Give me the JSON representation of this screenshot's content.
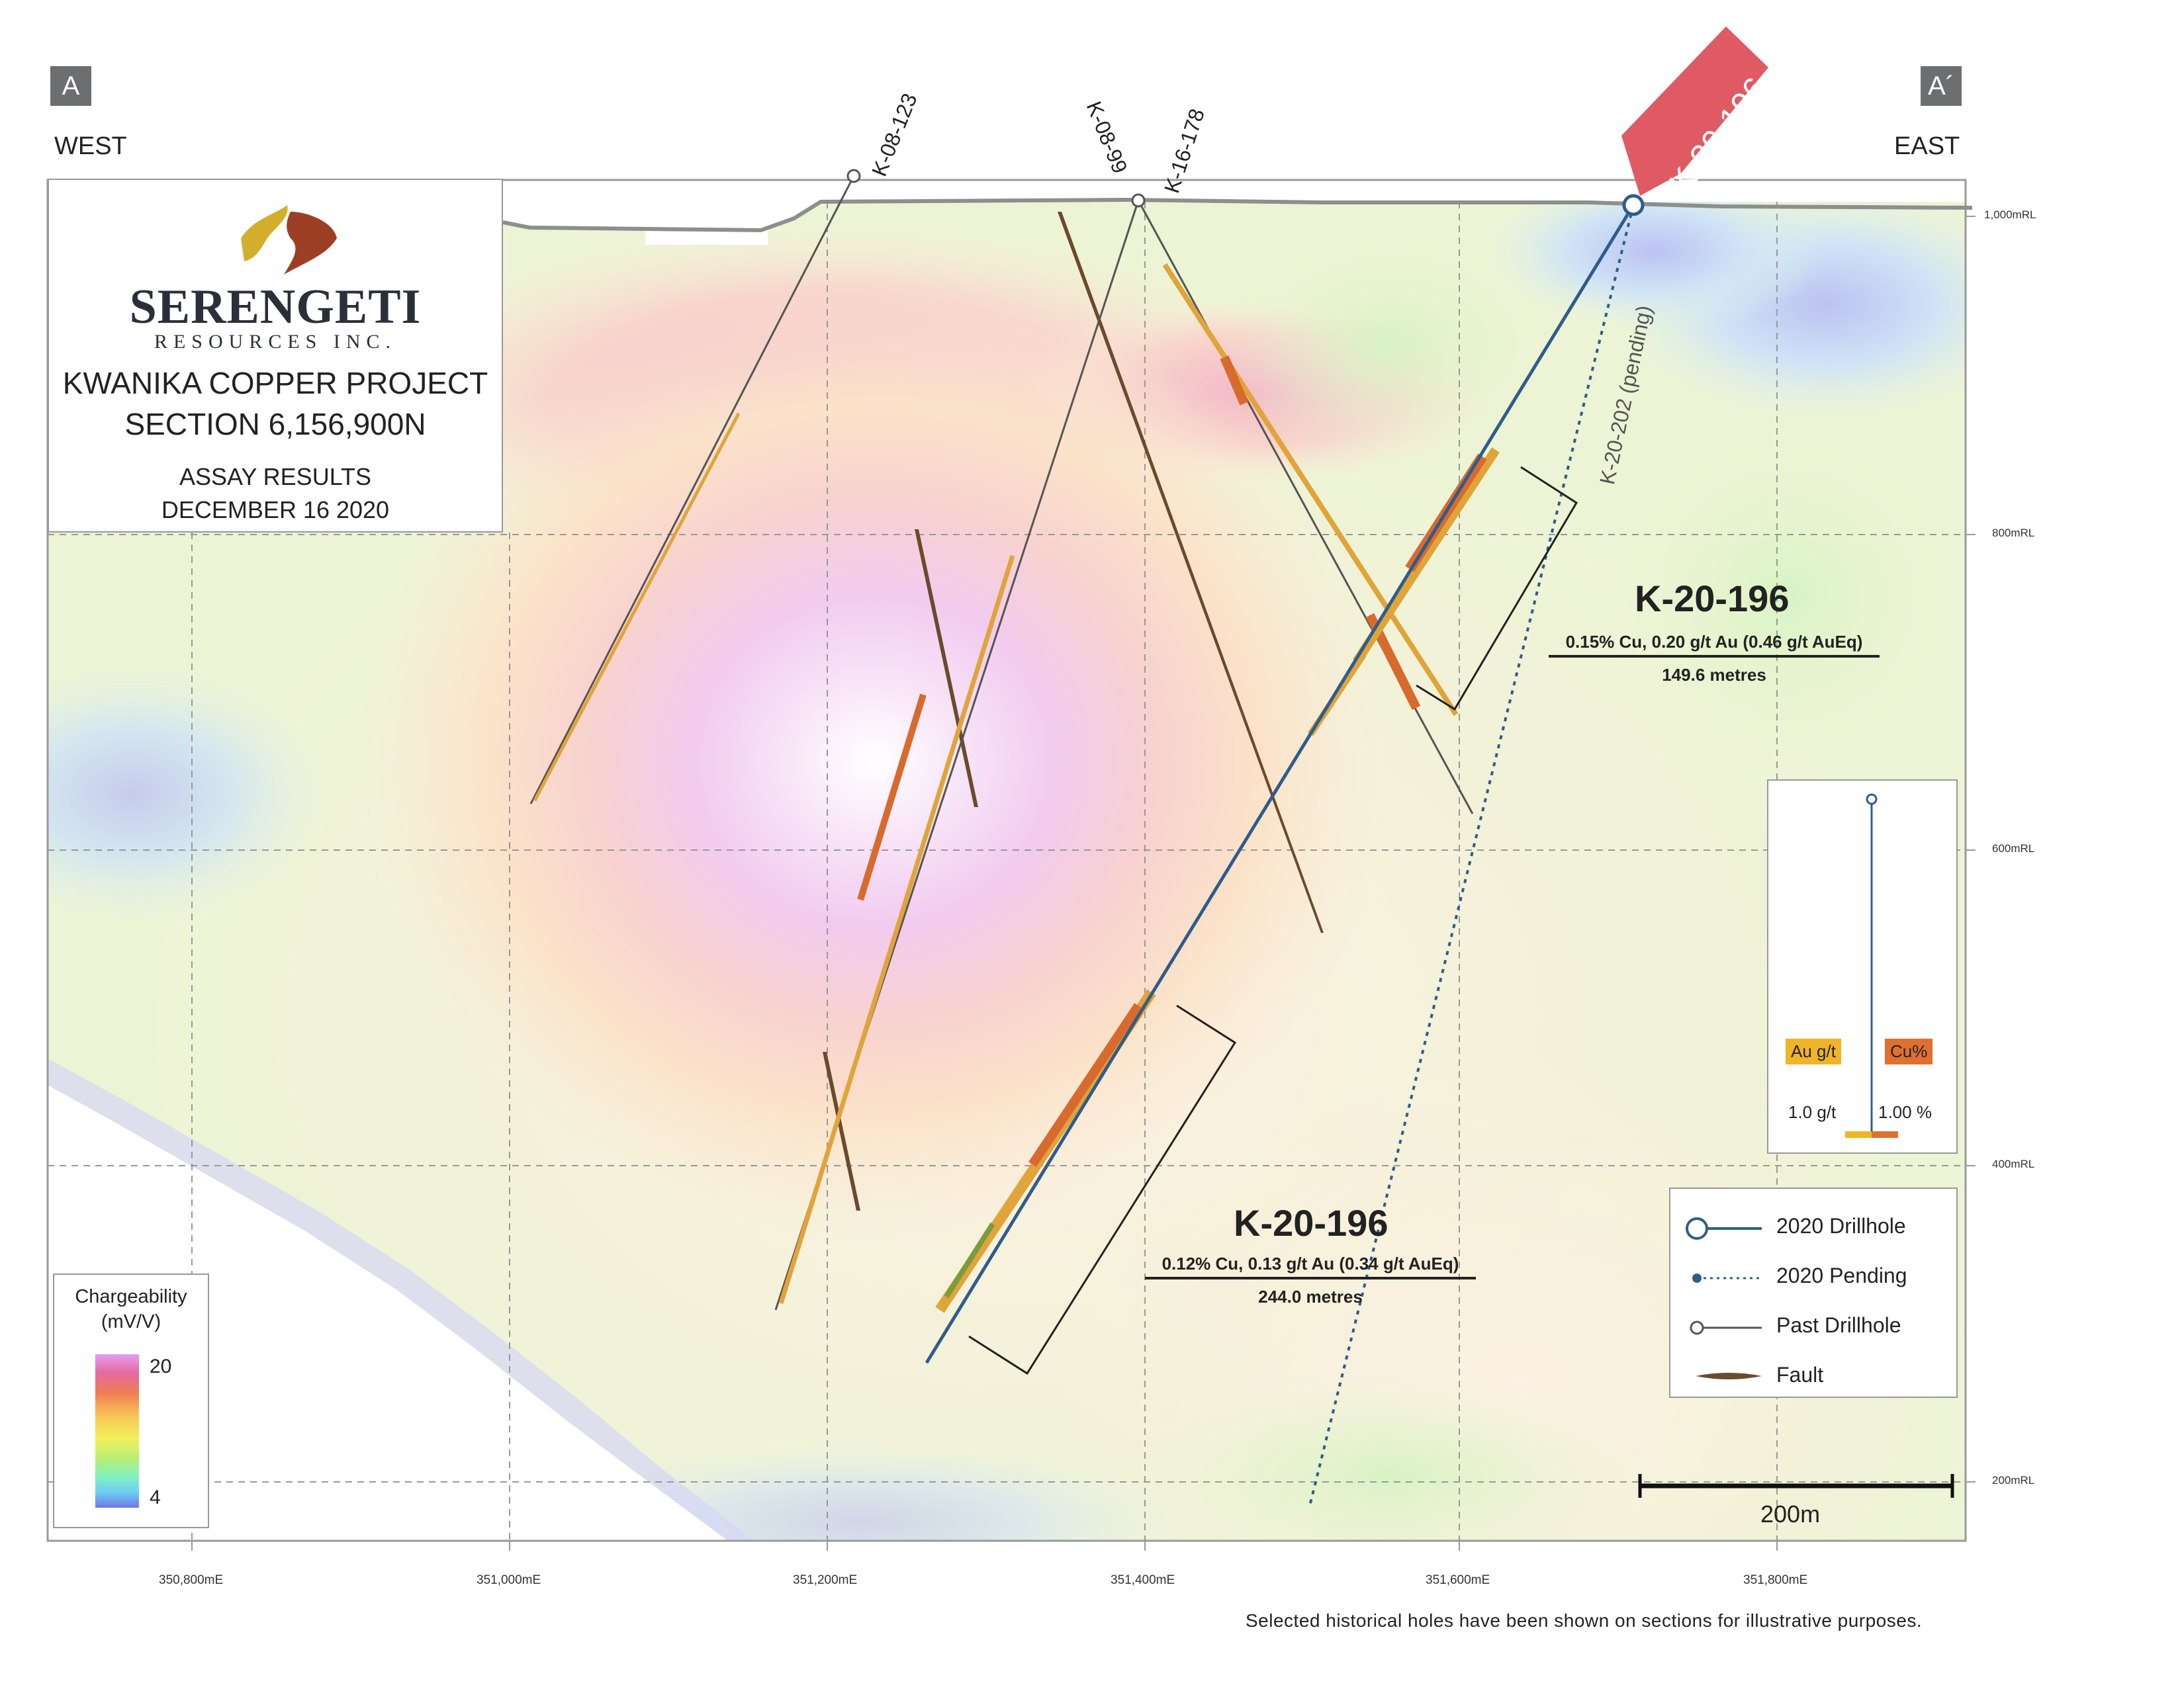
{
  "section_ends": {
    "west_marker": "A",
    "east_marker": "A´",
    "west_label": "WEST",
    "east_label": "EAST"
  },
  "title_box": {
    "company": "SERENGETI",
    "company_sub": "RESOURCES INC.",
    "project": "KWANIKA COPPER PROJECT",
    "section": "SECTION 6,156,900N",
    "assay": "ASSAY RESULTS",
    "date": "DECEMBER 16 2020",
    "logo_colors": [
      "#d4af2c",
      "#9c3f24"
    ]
  },
  "elevation_labels": [
    "1,000mRL",
    "800mRL",
    "600mRL",
    "400mRL",
    "200mRL"
  ],
  "easting_labels": [
    "350,800mE",
    "351,000mE",
    "351,200mE",
    "351,400mE",
    "351,600mE",
    "351,800mE"
  ],
  "drillholes": {
    "k08_123": "K-08-123",
    "k08_99": "K-08-99",
    "k16_178": "K-16-178",
    "k20_196": "K-20-196",
    "k20_202": "K-20-202 (pending)"
  },
  "results": [
    {
      "hole": "K-20-196",
      "grade": "0.15% Cu, 0.20 g/t Au (0.46 g/t AuEq)",
      "length": "149.6 metres"
    },
    {
      "hole": "K-20-196",
      "grade": "0.12% Cu, 0.13 g/t Au (0.34 g/t AuEq)",
      "length": "244.0 metres"
    }
  ],
  "inset": {
    "au_label": "Au g/t",
    "cu_label": "Cu%",
    "au_scale": "1.0 g/t",
    "cu_scale": "1.00 %",
    "au_color": "#f0b429",
    "cu_color": "#e07030"
  },
  "legend": {
    "items": [
      {
        "label": "2020 Drillhole",
        "icon": "drillhole-2020-icon"
      },
      {
        "label": "2020 Pending",
        "icon": "pending-icon"
      },
      {
        "label": "Past Drillhole",
        "icon": "past-drillhole-icon"
      },
      {
        "label": "Fault",
        "icon": "fault-icon"
      }
    ]
  },
  "chargeability": {
    "title_line1": "Chargeability",
    "title_line2": "(mV/V)",
    "max": "20",
    "min": "4"
  },
  "scale_bar": {
    "label": "200m"
  },
  "footnote": "Selected historical holes have been shown on sections for illustrative purposes.",
  "colors": {
    "drillhole_2020": "#2e5d8c",
    "past_hole": "#555555",
    "fault": "#6b4a2e",
    "callout": "#e05a64"
  }
}
